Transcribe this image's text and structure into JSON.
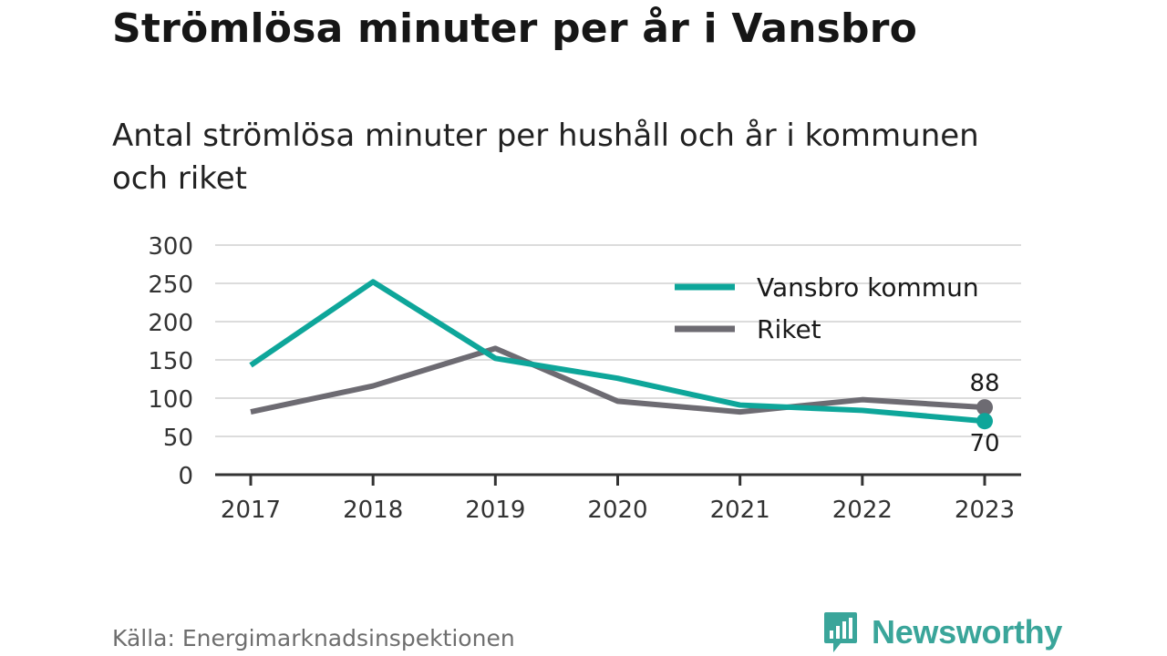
{
  "title": "Strömlösa minuter per år i Vansbro",
  "subtitle": "Antal strömlösa minuter per hushåll och år i kommunen och riket",
  "source": "Källa: Energimarknadsinspektionen",
  "brand": {
    "name": "Newsworthy",
    "color": "#3aa59a",
    "icon": "bar-chart-speech-bubble-icon"
  },
  "chart_data": {
    "type": "line",
    "x": [
      "2017",
      "2018",
      "2019",
      "2020",
      "2021",
      "2022",
      "2023"
    ],
    "ylim": [
      0,
      300
    ],
    "yticks": [
      0,
      50,
      100,
      150,
      200,
      250,
      300
    ],
    "grid": true,
    "legend_position": "top-right",
    "series": [
      {
        "name": "Vansbro kommun",
        "color": "#0ea69a",
        "values": [
          143,
          252,
          152,
          126,
          91,
          84,
          70
        ],
        "end_label": "70"
      },
      {
        "name": "Riket",
        "color": "#6d6b72",
        "values": [
          82,
          116,
          165,
          96,
          82,
          98,
          88
        ],
        "end_label": "88"
      }
    ]
  }
}
